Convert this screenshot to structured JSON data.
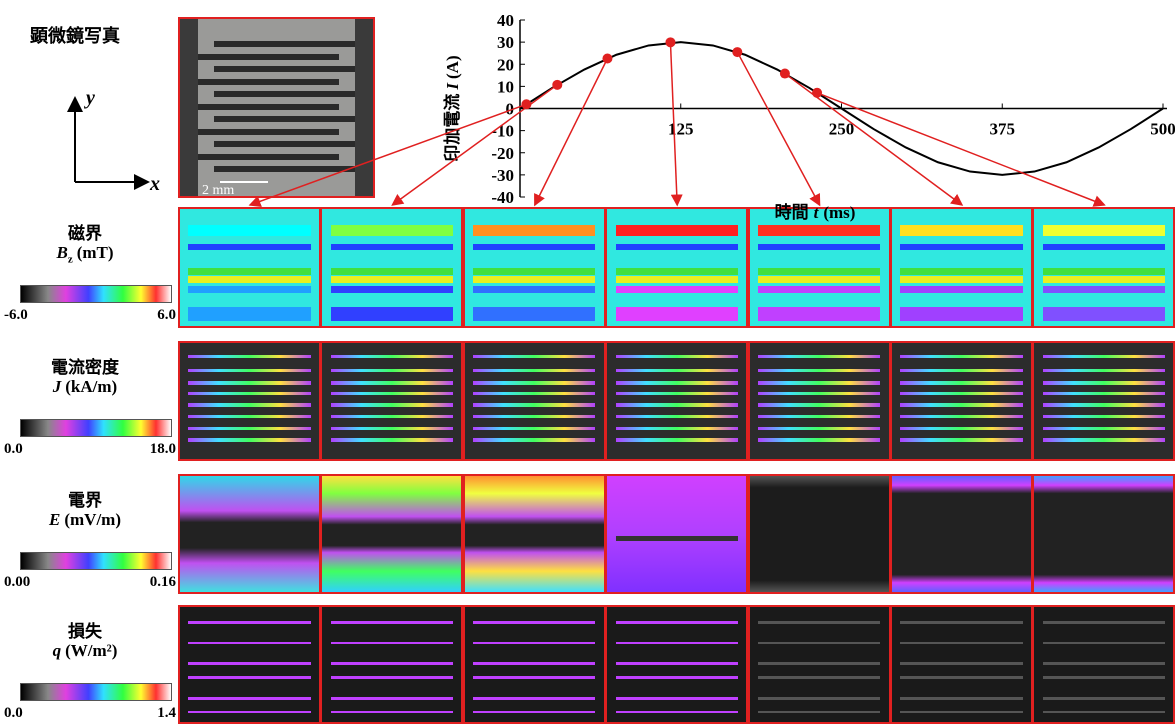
{
  "photo": {
    "title": "顕微鏡写真",
    "scale": "2 mm",
    "axis_x": "x",
    "axis_y": "y"
  },
  "chart_data": {
    "type": "line",
    "ylabel": {
      "text": "印加電流",
      "symbol": "I",
      "unit": "(A)"
    },
    "xlabel": {
      "text": "時間",
      "symbol": "t",
      "unit": "(ms)"
    },
    "xlim": [
      0,
      500
    ],
    "xticks": [
      125,
      250,
      375,
      500
    ],
    "ylim": [
      -40,
      40
    ],
    "yticks": [
      40,
      30,
      20,
      10,
      0,
      -10,
      -20,
      -30,
      -40
    ],
    "series": [
      {
        "color": "#000000",
        "x": [
          0,
          25,
          50,
          75,
          100,
          125,
          150,
          175,
          200,
          225,
          250,
          275,
          300,
          325,
          350,
          375,
          400,
          425,
          450,
          475,
          500
        ],
        "values": [
          0,
          9.3,
          17.6,
          24.3,
          28.5,
          30,
          28.5,
          24.3,
          17.6,
          9.3,
          0,
          -9.3,
          -17.6,
          -24.3,
          -28.5,
          -30,
          -28.5,
          -24.3,
          -17.6,
          -9.3,
          0
        ]
      },
      {
        "color": "#e02020",
        "marker": true,
        "x": [
          5,
          29,
          68,
          117,
          169,
          206,
          231
        ],
        "values": [
          1.9,
          10.7,
          22.6,
          29.9,
          25.5,
          15.8,
          7.1
        ]
      }
    ]
  },
  "rows": [
    {
      "name": "磁界",
      "symbol": "B",
      "sub": "z",
      "unit": "(mT)",
      "min": "-6.0",
      "max": "6.0"
    },
    {
      "name": "電流密度",
      "symbol": "J",
      "sub": "",
      "unit": "(kA/m)",
      "min": "0.0",
      "max": "18.0"
    },
    {
      "name": "電界",
      "symbol": "E",
      "sub": "",
      "unit": "(mV/m)",
      "min": "0.00",
      "max": "0.16"
    },
    {
      "name": "損失",
      "symbol": "q",
      "sub": "",
      "unit": "(W/m²)",
      "min": "0.0",
      "max": "1.4"
    }
  ]
}
